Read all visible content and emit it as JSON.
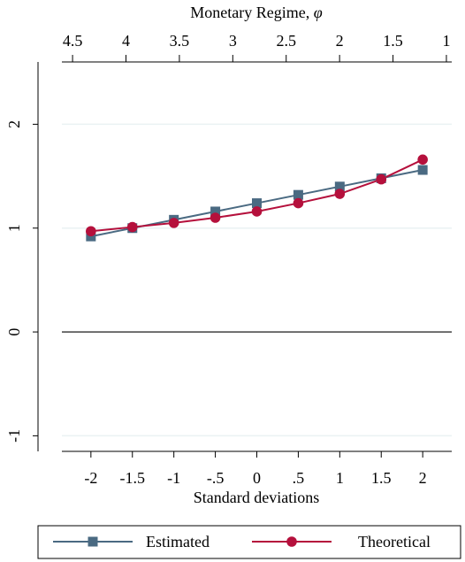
{
  "chart_data": {
    "type": "line",
    "top_axis": {
      "label": "Monetary Regime, ",
      "symbol": "φ",
      "ticks": [
        "4.5",
        "4",
        "3.5",
        "3",
        "2.5",
        "2",
        "1.5",
        "1"
      ],
      "tick_values": [
        4.5,
        4,
        3.5,
        3,
        2.5,
        2,
        1.5,
        1
      ],
      "range": [
        4.6,
        0.95
      ]
    },
    "xlabel": "Standard deviations",
    "x_ticks": [
      "-2",
      "-1.5",
      "-1",
      "-.5",
      "0",
      ".5",
      "1",
      "1.5",
      "2"
    ],
    "x": [
      -2,
      -1.5,
      -1,
      -0.5,
      0,
      0.5,
      1,
      1.5,
      2
    ],
    "xlim": [
      -2.35,
      2.35
    ],
    "y_ticks": [
      "-1",
      "0",
      "1",
      "2"
    ],
    "y_tick_values": [
      -1,
      0,
      1,
      2
    ],
    "ylim": [
      -1.15,
      2.6
    ],
    "grid": true,
    "reference_line_y": 0,
    "legend_position": "bottom",
    "series": [
      {
        "name": "Estimated",
        "marker": "square",
        "color": "#4a6a82",
        "values": [
          0.92,
          1.0,
          1.08,
          1.16,
          1.24,
          1.32,
          1.4,
          1.48,
          1.56
        ]
      },
      {
        "name": "Theoretical",
        "marker": "circle",
        "color": "#b5103c",
        "values": [
          0.97,
          1.01,
          1.05,
          1.1,
          1.16,
          1.24,
          1.33,
          1.47,
          1.66
        ]
      }
    ]
  }
}
